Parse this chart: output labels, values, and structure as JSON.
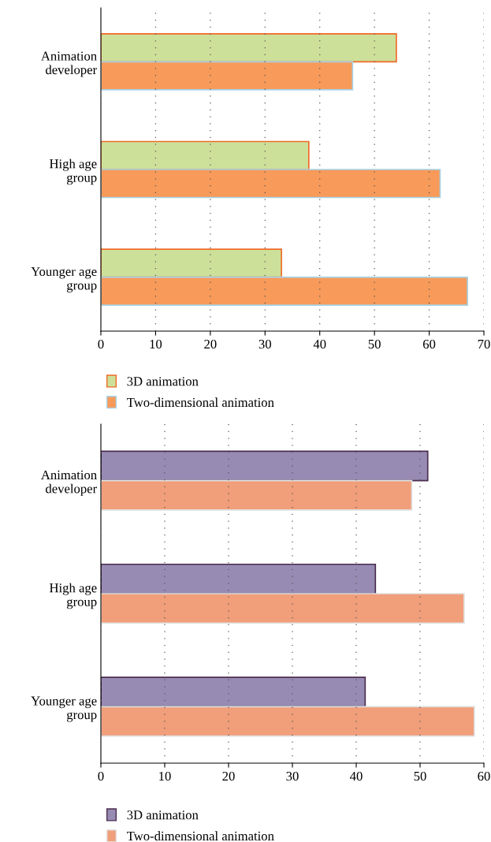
{
  "chart_data": [
    {
      "type": "bar",
      "orientation": "horizontal",
      "categories": [
        "Animation\ndeveloper",
        "High age\ngroup",
        "Younger age\ngroup"
      ],
      "series": [
        {
          "name": "3D animation",
          "color": "#cde09a",
          "values": [
            54,
            38,
            33
          ]
        },
        {
          "name": "Two-dimensional animation",
          "color": "#f79a5a",
          "values": [
            46,
            62,
            67
          ]
        }
      ],
      "xlim": [
        0,
        70
      ],
      "xticks": [
        0,
        10,
        20,
        30,
        40,
        50,
        60,
        70
      ],
      "grid": "x",
      "legend": "bottom"
    },
    {
      "type": "bar",
      "orientation": "horizontal",
      "categories": [
        "Animation\ndeveloper",
        "High age\ngroup",
        "Younger age\ngroup"
      ],
      "series": [
        {
          "name": "3D animation",
          "color": "#978bb3",
          "values": [
            51.2,
            43.0,
            41.4
          ]
        },
        {
          "name": "Two-dimensional animation",
          "color": "#f19e7a",
          "values": [
            48.7,
            56.9,
            58.5
          ]
        }
      ],
      "xlim": [
        0,
        60
      ],
      "xticks": [
        0,
        10,
        20,
        30,
        40,
        50,
        60
      ],
      "grid": "x",
      "legend": "bottom"
    }
  ]
}
